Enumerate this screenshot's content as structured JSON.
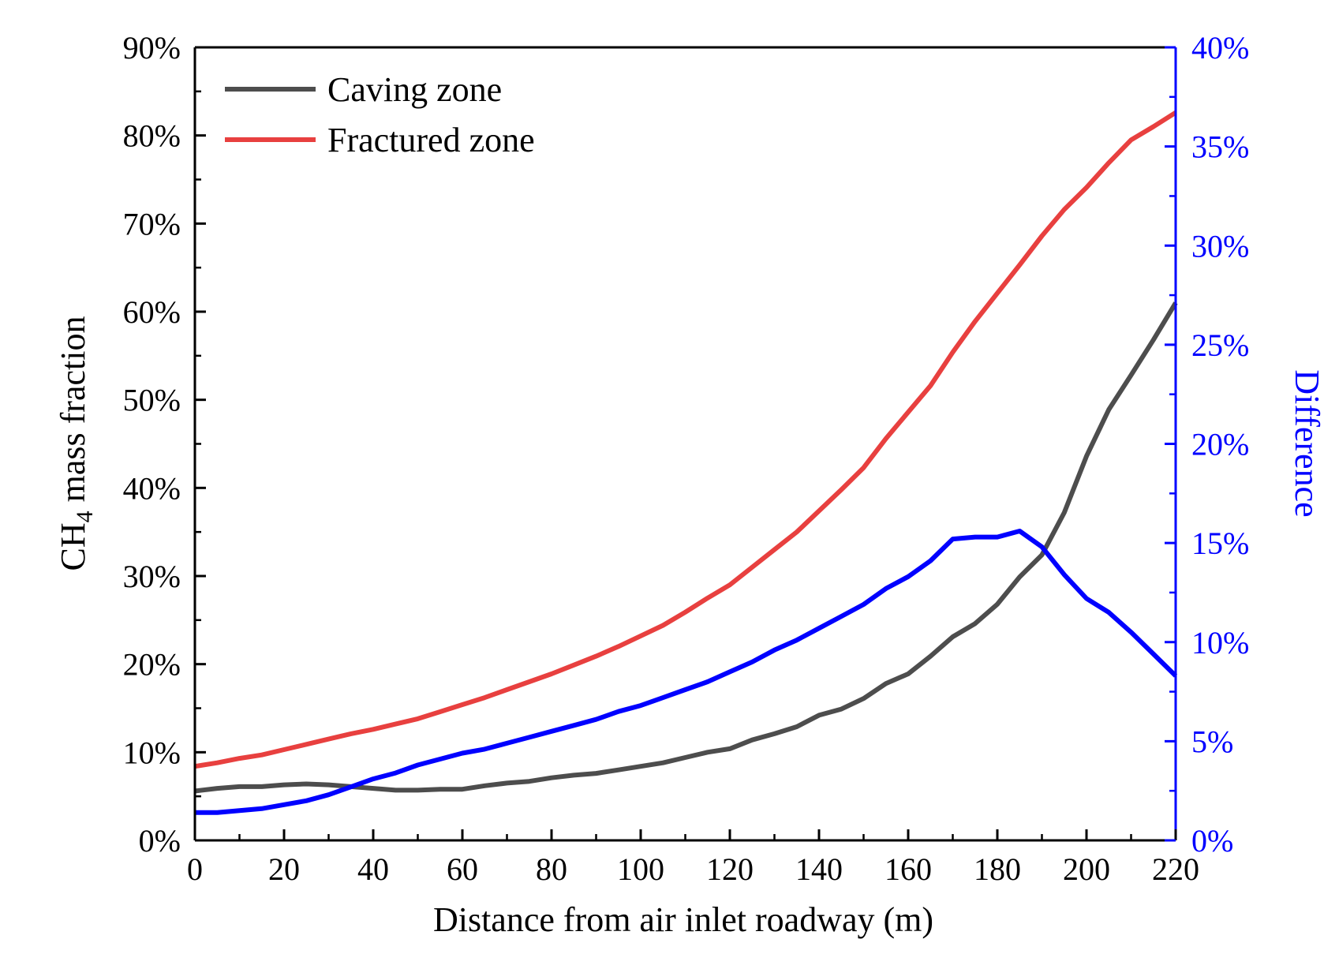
{
  "chart_data": {
    "type": "line",
    "title": "",
    "xlabel": "Distance from air inlet roadway (m)",
    "ylabel_left": "CH4 mass fraction",
    "ylabel_left_main": "CH",
    "ylabel_left_sub": "4",
    "ylabel_left_rest": " mass fraction",
    "ylabel_right": "Difference",
    "xlim": [
      0,
      220
    ],
    "ylim_left": [
      0,
      90
    ],
    "ylim_right": [
      0,
      40
    ],
    "x_ticks": [
      0,
      20,
      40,
      60,
      80,
      100,
      120,
      140,
      160,
      180,
      200,
      220
    ],
    "y_left_ticks": [
      0,
      10,
      20,
      30,
      40,
      50,
      60,
      70,
      80,
      90
    ],
    "y_right_ticks": [
      0,
      5,
      10,
      15,
      20,
      25,
      30,
      35,
      40
    ],
    "x_tick_labels": [
      "0",
      "20",
      "40",
      "60",
      "80",
      "100",
      "120",
      "140",
      "160",
      "180",
      "200",
      "220"
    ],
    "y_left_tick_labels": [
      "0%",
      "10%",
      "20%",
      "30%",
      "40%",
      "50%",
      "60%",
      "70%",
      "80%",
      "90%"
    ],
    "y_right_tick_labels": [
      "0%",
      "5%",
      "10%",
      "15%",
      "20%",
      "25%",
      "30%",
      "35%",
      "40%"
    ],
    "grid": false,
    "legend_position": "top-left",
    "series": [
      {
        "name": "Caving zone",
        "axis": "left",
        "color": "#4d4d4d",
        "legend_label": "Caving zone",
        "points": [
          [
            0,
            5.6
          ],
          [
            5,
            5.9
          ],
          [
            10,
            6.1
          ],
          [
            15,
            6.1
          ],
          [
            20,
            6.3
          ],
          [
            25,
            6.4
          ],
          [
            30,
            6.3
          ],
          [
            35,
            6.1
          ],
          [
            40,
            5.9
          ],
          [
            45,
            5.7
          ],
          [
            50,
            5.7
          ],
          [
            55,
            5.8
          ],
          [
            60,
            5.8
          ],
          [
            65,
            6.2
          ],
          [
            70,
            6.5
          ],
          [
            75,
            6.7
          ],
          [
            80,
            7.1
          ],
          [
            85,
            7.4
          ],
          [
            90,
            7.6
          ],
          [
            95,
            8.0
          ],
          [
            100,
            8.4
          ],
          [
            105,
            8.8
          ],
          [
            110,
            9.4
          ],
          [
            115,
            10.0
          ],
          [
            120,
            10.4
          ],
          [
            125,
            11.4
          ],
          [
            130,
            12.1
          ],
          [
            135,
            12.9
          ],
          [
            140,
            14.2
          ],
          [
            145,
            14.9
          ],
          [
            150,
            16.1
          ],
          [
            155,
            17.8
          ],
          [
            160,
            18.9
          ],
          [
            165,
            20.9
          ],
          [
            170,
            23.1
          ],
          [
            175,
            24.6
          ],
          [
            180,
            26.8
          ],
          [
            185,
            29.9
          ],
          [
            190,
            32.4
          ],
          [
            195,
            37.2
          ],
          [
            200,
            43.6
          ],
          [
            205,
            48.9
          ],
          [
            210,
            52.8
          ],
          [
            215,
            56.8
          ],
          [
            220,
            61.0
          ]
        ]
      },
      {
        "name": "Fractured zone",
        "axis": "left",
        "color": "#e8403f",
        "legend_label": "Fractured zone",
        "points": [
          [
            0,
            8.4
          ],
          [
            5,
            8.8
          ],
          [
            10,
            9.3
          ],
          [
            15,
            9.7
          ],
          [
            20,
            10.3
          ],
          [
            25,
            10.9
          ],
          [
            30,
            11.5
          ],
          [
            35,
            12.1
          ],
          [
            40,
            12.6
          ],
          [
            45,
            13.2
          ],
          [
            50,
            13.8
          ],
          [
            55,
            14.6
          ],
          [
            60,
            15.4
          ],
          [
            65,
            16.2
          ],
          [
            70,
            17.1
          ],
          [
            75,
            18.0
          ],
          [
            80,
            18.9
          ],
          [
            85,
            19.9
          ],
          [
            90,
            20.9
          ],
          [
            95,
            22.0
          ],
          [
            100,
            23.2
          ],
          [
            105,
            24.4
          ],
          [
            110,
            25.9
          ],
          [
            115,
            27.5
          ],
          [
            120,
            29.0
          ],
          [
            125,
            31.0
          ],
          [
            130,
            33.0
          ],
          [
            135,
            35.0
          ],
          [
            140,
            37.4
          ],
          [
            145,
            39.8
          ],
          [
            150,
            42.3
          ],
          [
            155,
            45.6
          ],
          [
            160,
            48.6
          ],
          [
            165,
            51.6
          ],
          [
            170,
            55.4
          ],
          [
            175,
            58.9
          ],
          [
            180,
            62.1
          ],
          [
            185,
            65.3
          ],
          [
            190,
            68.6
          ],
          [
            195,
            71.6
          ],
          [
            200,
            74.1
          ],
          [
            205,
            76.9
          ],
          [
            210,
            79.5
          ],
          [
            215,
            81.0
          ],
          [
            220,
            82.6
          ]
        ]
      },
      {
        "name": "Difference",
        "axis": "right",
        "color": "#0000ff",
        "points": [
          [
            0,
            1.4
          ],
          [
            5,
            1.4
          ],
          [
            10,
            1.5
          ],
          [
            15,
            1.6
          ],
          [
            20,
            1.8
          ],
          [
            25,
            2.0
          ],
          [
            30,
            2.3
          ],
          [
            35,
            2.7
          ],
          [
            40,
            3.1
          ],
          [
            45,
            3.4
          ],
          [
            50,
            3.8
          ],
          [
            55,
            4.1
          ],
          [
            60,
            4.4
          ],
          [
            65,
            4.6
          ],
          [
            70,
            4.9
          ],
          [
            75,
            5.2
          ],
          [
            80,
            5.5
          ],
          [
            85,
            5.8
          ],
          [
            90,
            6.1
          ],
          [
            95,
            6.5
          ],
          [
            100,
            6.8
          ],
          [
            105,
            7.2
          ],
          [
            110,
            7.6
          ],
          [
            115,
            8.0
          ],
          [
            120,
            8.5
          ],
          [
            125,
            9.0
          ],
          [
            130,
            9.6
          ],
          [
            135,
            10.1
          ],
          [
            140,
            10.7
          ],
          [
            145,
            11.3
          ],
          [
            150,
            11.9
          ],
          [
            155,
            12.7
          ],
          [
            160,
            13.3
          ],
          [
            165,
            14.1
          ],
          [
            170,
            15.2
          ],
          [
            175,
            15.3
          ],
          [
            180,
            15.3
          ],
          [
            185,
            15.6
          ],
          [
            190,
            14.8
          ],
          [
            195,
            13.4
          ],
          [
            200,
            12.2
          ],
          [
            205,
            11.5
          ],
          [
            210,
            10.5
          ],
          [
            215,
            9.4
          ],
          [
            220,
            8.3
          ]
        ]
      }
    ]
  }
}
